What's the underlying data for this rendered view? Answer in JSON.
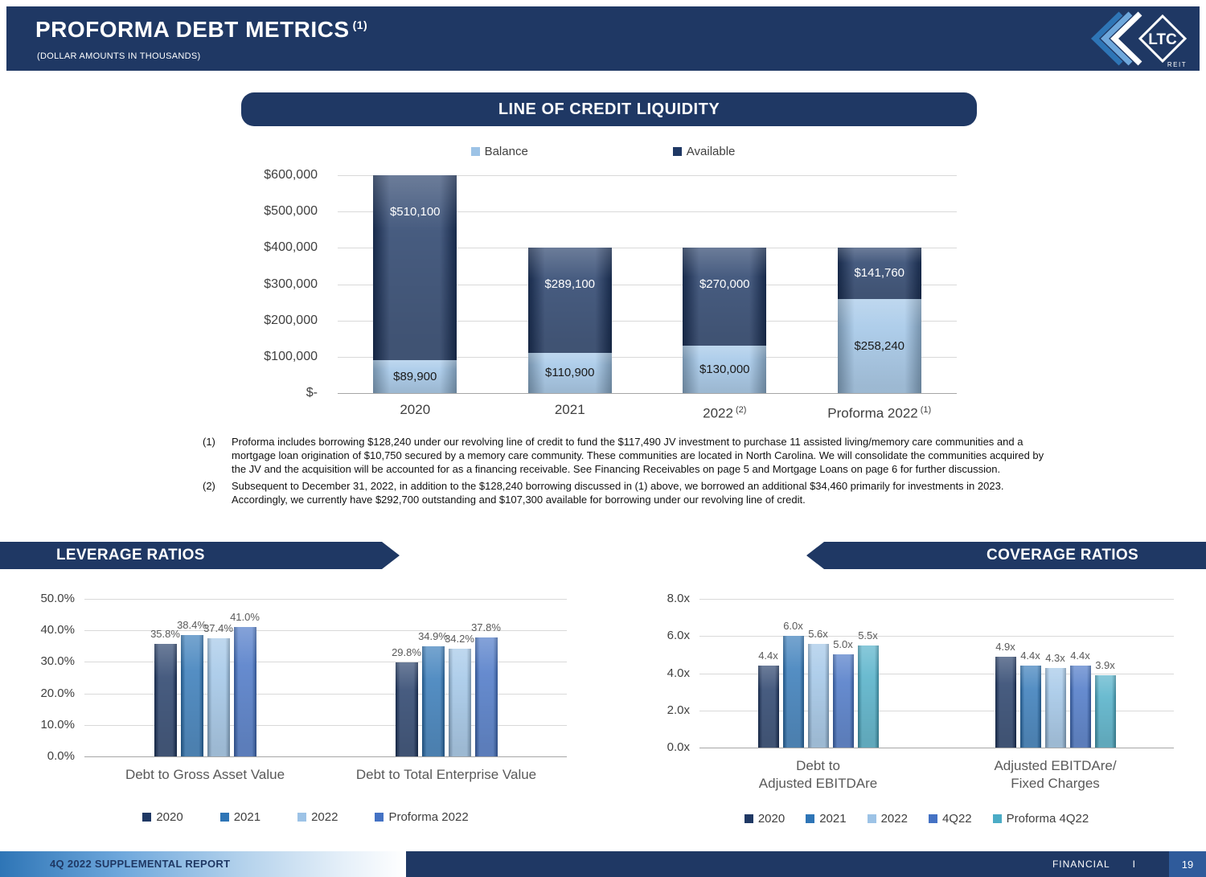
{
  "header": {
    "title": "PROFORMA DEBT METRICS",
    "title_sup": "(1)",
    "subtitle": "(DOLLAR AMOUNTS IN THOUSANDS)",
    "logo_text": "LTC",
    "logo_subtext": "REIT"
  },
  "colors": {
    "navy": "#1F3864",
    "blue": "#2E75B6",
    "light_blue": "#9DC3E6",
    "slate_blue": "#4472C4",
    "teal": "#4BACC6"
  },
  "chart_data": [
    {
      "id": "line-of-credit-liquidity",
      "type": "bar",
      "stacked": true,
      "title": "LINE OF CREDIT LIQUIDITY",
      "legend_position": "top",
      "grid": true,
      "ylim": [
        0,
        600000
      ],
      "y_ticks": [
        "$600,000",
        "$500,000",
        "$400,000",
        "$300,000",
        "$200,000",
        "$100,000",
        "$-"
      ],
      "categories": [
        {
          "label": "2020",
          "sup": ""
        },
        {
          "label": "2021",
          "sup": ""
        },
        {
          "label": "2022",
          "sup": "(2)"
        },
        {
          "label": "Proforma 2022",
          "sup": "(1)"
        }
      ],
      "series": [
        {
          "name": "Balance",
          "color": "#9DC3E6",
          "label_color": "#1a1a1a",
          "values": [
            89900,
            110900,
            130000,
            258240
          ],
          "labels": [
            "$89,900",
            "$110,900",
            "$130,000",
            "$258,240"
          ]
        },
        {
          "name": "Available",
          "color": "#1F3864",
          "label_color": "#FFFFFF",
          "values": [
            510100,
            289100,
            270000,
            141760
          ],
          "labels": [
            "$510,100",
            "$289,100",
            "$270,000",
            "$141,760"
          ]
        }
      ]
    },
    {
      "id": "leverage-ratios",
      "type": "bar",
      "stacked": false,
      "title": "LEVERAGE RATIOS",
      "legend_position": "bottom",
      "grid": true,
      "ylim": [
        0,
        50
      ],
      "y_ticks": [
        "50.0%",
        "40.0%",
        "30.0%",
        "20.0%",
        "10.0%",
        "0.0%"
      ],
      "categories": [
        {
          "lines": [
            "Debt to Gross Asset Value"
          ]
        },
        {
          "lines": [
            "Debt to Total Enterprise Value"
          ]
        }
      ],
      "series": [
        {
          "name": "2020",
          "color": "#1F3864",
          "values": [
            35.8,
            29.8
          ],
          "labels": [
            "35.8%",
            "29.8%"
          ]
        },
        {
          "name": "2021",
          "color": "#2E75B6",
          "values": [
            38.4,
            34.9
          ],
          "labels": [
            "38.4%",
            "34.9%"
          ]
        },
        {
          "name": "2022",
          "color": "#9DC3E6",
          "values": [
            37.4,
            34.2
          ],
          "labels": [
            "37.4%",
            "34.2%"
          ]
        },
        {
          "name": "Proforma 2022",
          "color": "#4472C4",
          "values": [
            41.0,
            37.8
          ],
          "labels": [
            "41.0%",
            "37.8%"
          ]
        }
      ]
    },
    {
      "id": "coverage-ratios",
      "type": "bar",
      "stacked": false,
      "title": "COVERAGE RATIOS",
      "legend_position": "bottom",
      "grid": true,
      "ylim": [
        0,
        8
      ],
      "y_ticks": [
        "8.0x",
        "6.0x",
        "4.0x",
        "2.0x",
        "0.0x"
      ],
      "categories": [
        {
          "lines": [
            "Debt to",
            "Adjusted EBITDAre"
          ]
        },
        {
          "lines": [
            "Adjusted EBITDAre/",
            "Fixed Charges"
          ]
        }
      ],
      "series": [
        {
          "name": "2020",
          "color": "#1F3864",
          "values": [
            4.4,
            4.9
          ],
          "labels": [
            "4.4x",
            "4.9x"
          ]
        },
        {
          "name": "2021",
          "color": "#2E75B6",
          "values": [
            6.0,
            4.4
          ],
          "labels": [
            "6.0x",
            "4.4x"
          ]
        },
        {
          "name": "2022",
          "color": "#9DC3E6",
          "values": [
            5.6,
            4.3
          ],
          "labels": [
            "5.6x",
            "4.3x"
          ]
        },
        {
          "name": "4Q22",
          "color": "#4472C4",
          "values": [
            5.0,
            4.4
          ],
          "labels": [
            "5.0x",
            "4.4x"
          ]
        },
        {
          "name": "Proforma 4Q22",
          "color": "#4BACC6",
          "values": [
            5.5,
            3.9
          ],
          "labels": [
            "5.5x",
            "3.9x"
          ]
        }
      ]
    }
  ],
  "footnotes": [
    {
      "marker": "(1)",
      "text": "Proforma includes borrowing $128,240 under our revolving line of credit to fund the $117,490 JV investment to purchase 11 assisted living/memory care communities and a mortgage loan origination of $10,750 secured by a memory care community. These communities are located in North Carolina. We will consolidate the communities acquired by the JV and the acquisition will be accounted for as a financing receivable. See Financing Receivables on page 5 and Mortgage Loans on page 6 for further discussion."
    },
    {
      "marker": "(2)",
      "text": "Subsequent to December 31, 2022, in addition to the $128,240 borrowing discussed in (1) above, we borrowed an additional $34,460 primarily for investments in 2023. Accordingly, we currently have $292,700 outstanding and $107,300 available for borrowing under our revolving line of credit."
    }
  ],
  "footer": {
    "left": "4Q 2022 SUPPLEMENTAL REPORT",
    "section": "FINANCIAL",
    "separator": "I",
    "page": "19"
  }
}
